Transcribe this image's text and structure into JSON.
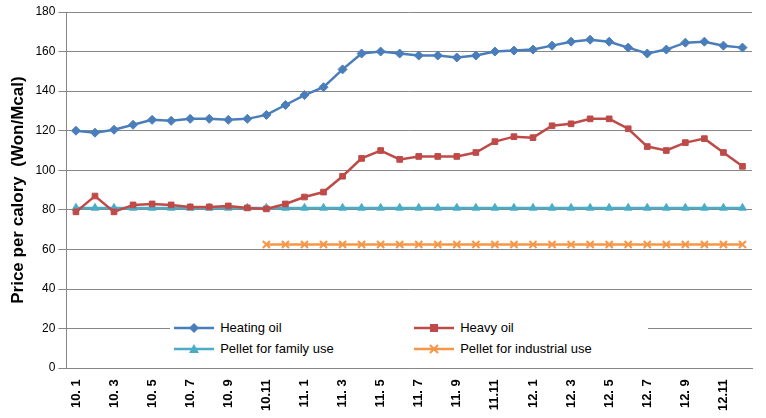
{
  "chart_data": {
    "type": "line",
    "y_label": "Price per calory  (Won/Mcal)",
    "categories": [
      "10. 1",
      null,
      "10. 3",
      null,
      "10. 5",
      null,
      "10. 7",
      null,
      "10. 9",
      null,
      "10.11",
      null,
      "11. 1",
      null,
      "11. 3",
      null,
      "11. 5",
      null,
      "11. 7",
      null,
      "11. 9",
      null,
      "11.11",
      null,
      "12. 1",
      null,
      "12. 3",
      null,
      "12. 5",
      null,
      "12. 7",
      null,
      "12. 9",
      null,
      "12.11",
      null
    ],
    "series": [
      {
        "name": "Heating oil",
        "color": "#4a7ebb",
        "marker": "diamond",
        "values": [
          120,
          119,
          120.5,
          123,
          125.5,
          125,
          126,
          126,
          125.5,
          126,
          128,
          133,
          138,
          142,
          151,
          159,
          160,
          159,
          158,
          158,
          157,
          158,
          160,
          160.5,
          161,
          163,
          165,
          166,
          165,
          162,
          159,
          161,
          164.5,
          165,
          163,
          162
        ]
      },
      {
        "name": "Heavy oil",
        "color": "#be4b48",
        "marker": "square",
        "values": [
          79,
          87,
          79,
          82.5,
          83,
          82.5,
          81.5,
          81.5,
          82,
          81,
          80.5,
          83,
          86.5,
          89,
          97,
          106,
          110,
          105.5,
          107,
          107,
          107,
          109,
          114.5,
          117,
          116.5,
          122.5,
          123.5,
          126,
          126,
          121,
          112,
          110,
          114,
          116,
          109,
          102
        ]
      },
      {
        "name": "Pellet for family use",
        "color": "#4bacc6",
        "marker": "triangle",
        "values": [
          81,
          81,
          81,
          81,
          81,
          81,
          81,
          81,
          81,
          81,
          81,
          81,
          81,
          81,
          81,
          81,
          81,
          81,
          81,
          81,
          81,
          81,
          81,
          81,
          81,
          81,
          81,
          81,
          81,
          81,
          81,
          81,
          81,
          81,
          81,
          81
        ]
      },
      {
        "name": "Pellet for industrial use",
        "color": "#f79646",
        "marker": "x",
        "values": [
          null,
          null,
          null,
          null,
          null,
          null,
          null,
          null,
          null,
          null,
          62.5,
          62.5,
          62.5,
          62.5,
          62.5,
          62.5,
          62.5,
          62.5,
          62.5,
          62.5,
          62.5,
          62.5,
          62.5,
          62.5,
          62.5,
          62.5,
          62.5,
          62.5,
          62.5,
          62.5,
          62.5,
          62.5,
          62.5,
          62.5,
          62.5,
          62.5
        ]
      }
    ],
    "ylim": [
      0,
      180
    ],
    "yticks": [
      0,
      20,
      40,
      60,
      80,
      100,
      120,
      140,
      160,
      180
    ],
    "grid": true,
    "legend": "bottom"
  }
}
